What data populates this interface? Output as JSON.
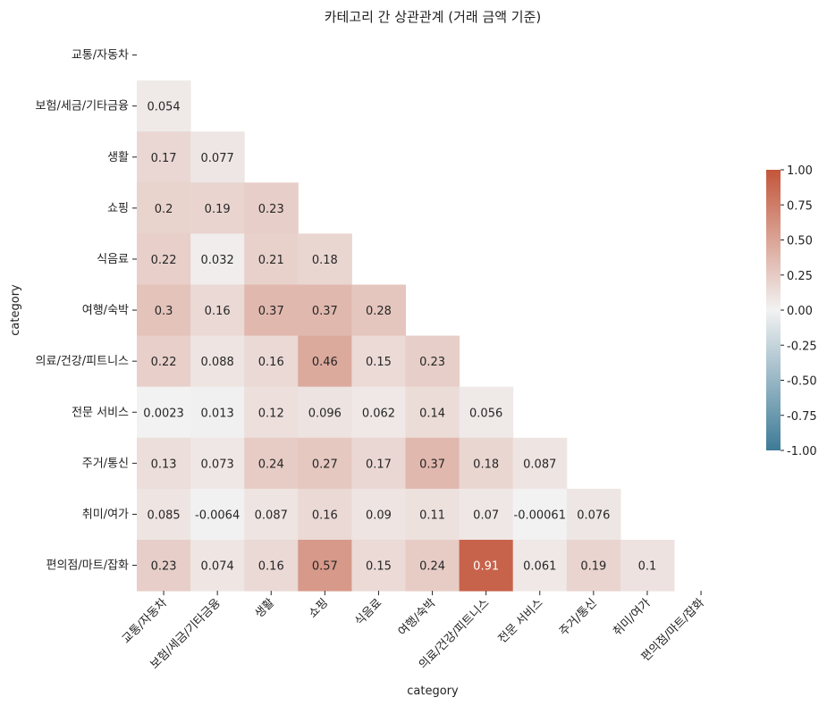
{
  "chart_data": {
    "type": "heatmap",
    "title": "카테고리 간 상관관계 (거래 금액 기준)",
    "xlabel": "category",
    "ylabel": "category",
    "categories": [
      "교통/자동차",
      "보험/세금/기타금융",
      "생활",
      "쇼핑",
      "식음료",
      "여행/숙박",
      "의료/건강/피트니스",
      "전문 서비스",
      "주거/통신",
      "취미/여가",
      "편의점/마트/잡화"
    ],
    "mask": "upper triangle incl. diagonal",
    "cells": [
      {
        "row": 1,
        "col": 0,
        "value": 0.054,
        "label": "0.054"
      },
      {
        "row": 2,
        "col": 0,
        "value": 0.17,
        "label": "0.17"
      },
      {
        "row": 2,
        "col": 1,
        "value": 0.077,
        "label": "0.077"
      },
      {
        "row": 3,
        "col": 0,
        "value": 0.2,
        "label": "0.2"
      },
      {
        "row": 3,
        "col": 1,
        "value": 0.19,
        "label": "0.19"
      },
      {
        "row": 3,
        "col": 2,
        "value": 0.23,
        "label": "0.23"
      },
      {
        "row": 4,
        "col": 0,
        "value": 0.22,
        "label": "0.22"
      },
      {
        "row": 4,
        "col": 1,
        "value": 0.032,
        "label": "0.032"
      },
      {
        "row": 4,
        "col": 2,
        "value": 0.21,
        "label": "0.21"
      },
      {
        "row": 4,
        "col": 3,
        "value": 0.18,
        "label": "0.18"
      },
      {
        "row": 5,
        "col": 0,
        "value": 0.3,
        "label": "0.3"
      },
      {
        "row": 5,
        "col": 1,
        "value": 0.16,
        "label": "0.16"
      },
      {
        "row": 5,
        "col": 2,
        "value": 0.37,
        "label": "0.37"
      },
      {
        "row": 5,
        "col": 3,
        "value": 0.37,
        "label": "0.37"
      },
      {
        "row": 5,
        "col": 4,
        "value": 0.28,
        "label": "0.28"
      },
      {
        "row": 6,
        "col": 0,
        "value": 0.22,
        "label": "0.22"
      },
      {
        "row": 6,
        "col": 1,
        "value": 0.088,
        "label": "0.088"
      },
      {
        "row": 6,
        "col": 2,
        "value": 0.16,
        "label": "0.16"
      },
      {
        "row": 6,
        "col": 3,
        "value": 0.46,
        "label": "0.46"
      },
      {
        "row": 6,
        "col": 4,
        "value": 0.15,
        "label": "0.15"
      },
      {
        "row": 6,
        "col": 5,
        "value": 0.23,
        "label": "0.23"
      },
      {
        "row": 7,
        "col": 0,
        "value": 0.0023,
        "label": "0.0023"
      },
      {
        "row": 7,
        "col": 1,
        "value": 0.013,
        "label": "0.013"
      },
      {
        "row": 7,
        "col": 2,
        "value": 0.12,
        "label": "0.12"
      },
      {
        "row": 7,
        "col": 3,
        "value": 0.096,
        "label": "0.096"
      },
      {
        "row": 7,
        "col": 4,
        "value": 0.062,
        "label": "0.062"
      },
      {
        "row": 7,
        "col": 5,
        "value": 0.14,
        "label": "0.14"
      },
      {
        "row": 7,
        "col": 6,
        "value": 0.056,
        "label": "0.056"
      },
      {
        "row": 8,
        "col": 0,
        "value": 0.13,
        "label": "0.13"
      },
      {
        "row": 8,
        "col": 1,
        "value": 0.073,
        "label": "0.073"
      },
      {
        "row": 8,
        "col": 2,
        "value": 0.24,
        "label": "0.24"
      },
      {
        "row": 8,
        "col": 3,
        "value": 0.27,
        "label": "0.27"
      },
      {
        "row": 8,
        "col": 4,
        "value": 0.17,
        "label": "0.17"
      },
      {
        "row": 8,
        "col": 5,
        "value": 0.37,
        "label": "0.37"
      },
      {
        "row": 8,
        "col": 6,
        "value": 0.18,
        "label": "0.18"
      },
      {
        "row": 8,
        "col": 7,
        "value": 0.087,
        "label": "0.087"
      },
      {
        "row": 9,
        "col": 0,
        "value": 0.085,
        "label": "0.085"
      },
      {
        "row": 9,
        "col": 1,
        "value": -0.0064,
        "label": "-0.0064"
      },
      {
        "row": 9,
        "col": 2,
        "value": 0.087,
        "label": "0.087"
      },
      {
        "row": 9,
        "col": 3,
        "value": 0.16,
        "label": "0.16"
      },
      {
        "row": 9,
        "col": 4,
        "value": 0.09,
        "label": "0.09"
      },
      {
        "row": 9,
        "col": 5,
        "value": 0.11,
        "label": "0.11"
      },
      {
        "row": 9,
        "col": 6,
        "value": 0.07,
        "label": "0.07"
      },
      {
        "row": 9,
        "col": 7,
        "value": -0.00061,
        "label": "-0.00061"
      },
      {
        "row": 9,
        "col": 8,
        "value": 0.076,
        "label": "0.076"
      },
      {
        "row": 10,
        "col": 0,
        "value": 0.23,
        "label": "0.23"
      },
      {
        "row": 10,
        "col": 1,
        "value": 0.074,
        "label": "0.074"
      },
      {
        "row": 10,
        "col": 2,
        "value": 0.16,
        "label": "0.16"
      },
      {
        "row": 10,
        "col": 3,
        "value": 0.57,
        "label": "0.57"
      },
      {
        "row": 10,
        "col": 4,
        "value": 0.15,
        "label": "0.15"
      },
      {
        "row": 10,
        "col": 5,
        "value": 0.24,
        "label": "0.24"
      },
      {
        "row": 10,
        "col": 6,
        "value": 0.91,
        "label": "0.91"
      },
      {
        "row": 10,
        "col": 7,
        "value": 0.061,
        "label": "0.061"
      },
      {
        "row": 10,
        "col": 8,
        "value": 0.19,
        "label": "0.19"
      },
      {
        "row": 10,
        "col": 9,
        "value": 0.1,
        "label": "0.1"
      }
    ],
    "colorbar": {
      "range": [
        -1.0,
        1.0
      ],
      "ticks": [
        "1.00",
        "0.75",
        "0.50",
        "0.25",
        "0.00",
        "-0.25",
        "-0.50",
        "-0.75",
        "-1.00"
      ],
      "tick_values": [
        1.0,
        0.75,
        0.5,
        0.25,
        0.0,
        -0.25,
        -0.5,
        -0.75,
        -1.0
      ],
      "colors": {
        "negative": "#3d7b97",
        "center": "#f2f2f2",
        "positive": "#c3553a"
      }
    }
  }
}
